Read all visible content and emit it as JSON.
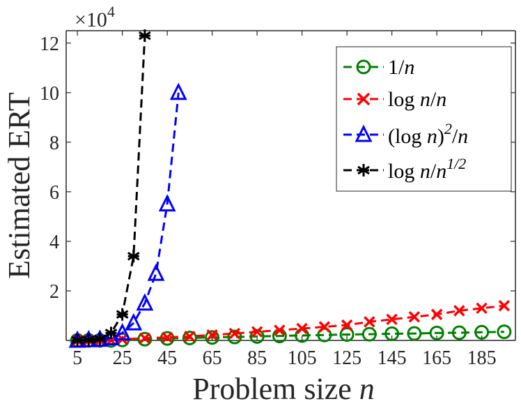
{
  "chart_data": {
    "type": "line",
    "xlabel": "Problem size",
    "xlabel_var": "n",
    "ylabel": "Estimated ERT",
    "y_exponent_base": "×10",
    "y_exponent_power": "4",
    "xlim": [
      0,
      200
    ],
    "ylim": [
      0,
      125000
    ],
    "x_ticks": [
      5,
      25,
      45,
      65,
      85,
      105,
      125,
      145,
      165,
      185
    ],
    "y_ticks": [
      20000,
      40000,
      60000,
      80000,
      100000,
      120000
    ],
    "y_tick_labels": [
      "2",
      "4",
      "6",
      "8",
      "10",
      "12"
    ],
    "grid": false,
    "legend_placement": "top-right",
    "series": [
      {
        "name": "1/n",
        "color": "#008000",
        "marker": "circle",
        "x": [
          5,
          10,
          15,
          20,
          25,
          35,
          45,
          55,
          65,
          75,
          85,
          95,
          105,
          115,
          125,
          135,
          145,
          155,
          165,
          175,
          185,
          195
        ],
        "y": [
          0,
          0,
          0,
          0,
          200,
          500,
          800,
          1000,
          1200,
          1400,
          1600,
          1800,
          2000,
          2200,
          2400,
          2500,
          2700,
          2800,
          3000,
          3100,
          3300,
          3500
        ]
      },
      {
        "name": "log n/n",
        "color": "#ff0000",
        "marker": "x",
        "x": [
          5,
          10,
          15,
          20,
          25,
          35,
          45,
          55,
          65,
          75,
          85,
          95,
          105,
          115,
          125,
          135,
          145,
          155,
          165,
          175,
          185,
          195
        ],
        "y": [
          0,
          0,
          0,
          0,
          500,
          900,
          1200,
          1600,
          2200,
          2800,
          3500,
          4100,
          4800,
          5500,
          6200,
          7500,
          8500,
          9500,
          10500,
          12000,
          13000,
          14000
        ]
      },
      {
        "name": "(log n)^2/n",
        "name_main": "(log ",
        "name_var": "n",
        "name_close": ")",
        "name_sup": "2",
        "name_tail": "/",
        "name_tail_var": "n",
        "color": "#0000ff",
        "marker": "triangle",
        "x": [
          5,
          10,
          15,
          20,
          25,
          30,
          35,
          40,
          45,
          50
        ],
        "y": [
          0,
          200,
          400,
          1000,
          3000,
          7000,
          15000,
          27000,
          55000,
          100000
        ]
      },
      {
        "name": "log n/n^1/2",
        "name_main": "log ",
        "name_var": "n",
        "name_slash": "/",
        "name_var2": "n",
        "name_sup": "1/2",
        "color": "#000000",
        "marker": "asterisk",
        "x": [
          5,
          10,
          15,
          20,
          25,
          30,
          35
        ],
        "y": [
          0,
          200,
          600,
          3000,
          10500,
          34000,
          123000
        ]
      }
    ],
    "legend_labels": {
      "s1_main": "1/",
      "s1_var": "n",
      "s2_main": "log ",
      "s2_var": "n",
      "s2_slash": "/",
      "s2_var2": "n"
    }
  }
}
